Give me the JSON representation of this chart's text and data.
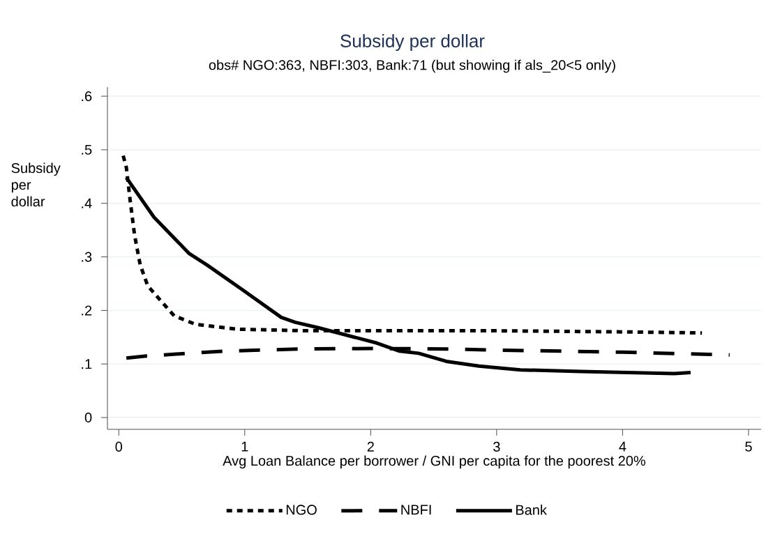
{
  "chart_data": {
    "type": "line",
    "title": "Subsidy per dollar",
    "subtitle": "obs# NGO:363, NBFI:303, Bank:71 (but showing if als_20<5 only)",
    "xlabel": "Avg Loan Balance per borrower / GNI per capita for the poorest 20%",
    "ylabel": "Subsidy per dollar",
    "xlim": [
      -0.09,
      5.1
    ],
    "ylim": [
      -0.022,
      0.617
    ],
    "xticks": [
      0,
      1,
      2,
      3,
      4,
      5
    ],
    "yticks": [
      {
        "value": 0,
        "label": "0"
      },
      {
        "value": 0.1,
        "label": ".1"
      },
      {
        "value": 0.2,
        "label": ".2"
      },
      {
        "value": 0.3,
        "label": ".3"
      },
      {
        "value": 0.4,
        "label": ".4"
      },
      {
        "value": 0.5,
        "label": ".5"
      },
      {
        "value": 0.6,
        "label": ".6"
      }
    ],
    "grid": "y",
    "legend": "bottom",
    "marker": "none",
    "series": [
      {
        "name": "NGO",
        "color": "#000000",
        "line_style": "dotted",
        "x": [
          0.035,
          0.06,
          0.09,
          0.125,
          0.17,
          0.23,
          0.33,
          0.44,
          0.61,
          0.94,
          1.49,
          2.0,
          3.0,
          4.0,
          4.63
        ],
        "values": [
          0.489,
          0.467,
          0.406,
          0.341,
          0.285,
          0.246,
          0.219,
          0.19,
          0.174,
          0.165,
          0.162,
          0.162,
          0.162,
          0.16,
          0.158
        ]
      },
      {
        "name": "NBFI",
        "color": "#000000",
        "line_style": "dashed",
        "x": [
          0.06,
          0.22,
          0.83,
          1.44,
          2.0,
          2.6,
          3.0,
          4.0,
          4.85
        ],
        "values": [
          0.111,
          0.115,
          0.124,
          0.128,
          0.129,
          0.128,
          0.126,
          0.122,
          0.117
        ]
      },
      {
        "name": "Bank",
        "color": "#000000",
        "line_style": "solid",
        "x": [
          0.06,
          0.28,
          0.56,
          0.7,
          0.98,
          1.29,
          1.4,
          1.58,
          2.05,
          2.23,
          2.38,
          2.6,
          2.86,
          3.19,
          3.67,
          4.41,
          4.54
        ],
        "values": [
          0.448,
          0.374,
          0.306,
          0.285,
          0.239,
          0.187,
          0.178,
          0.168,
          0.139,
          0.124,
          0.12,
          0.105,
          0.096,
          0.089,
          0.086,
          0.082,
          0.084
        ]
      }
    ]
  }
}
